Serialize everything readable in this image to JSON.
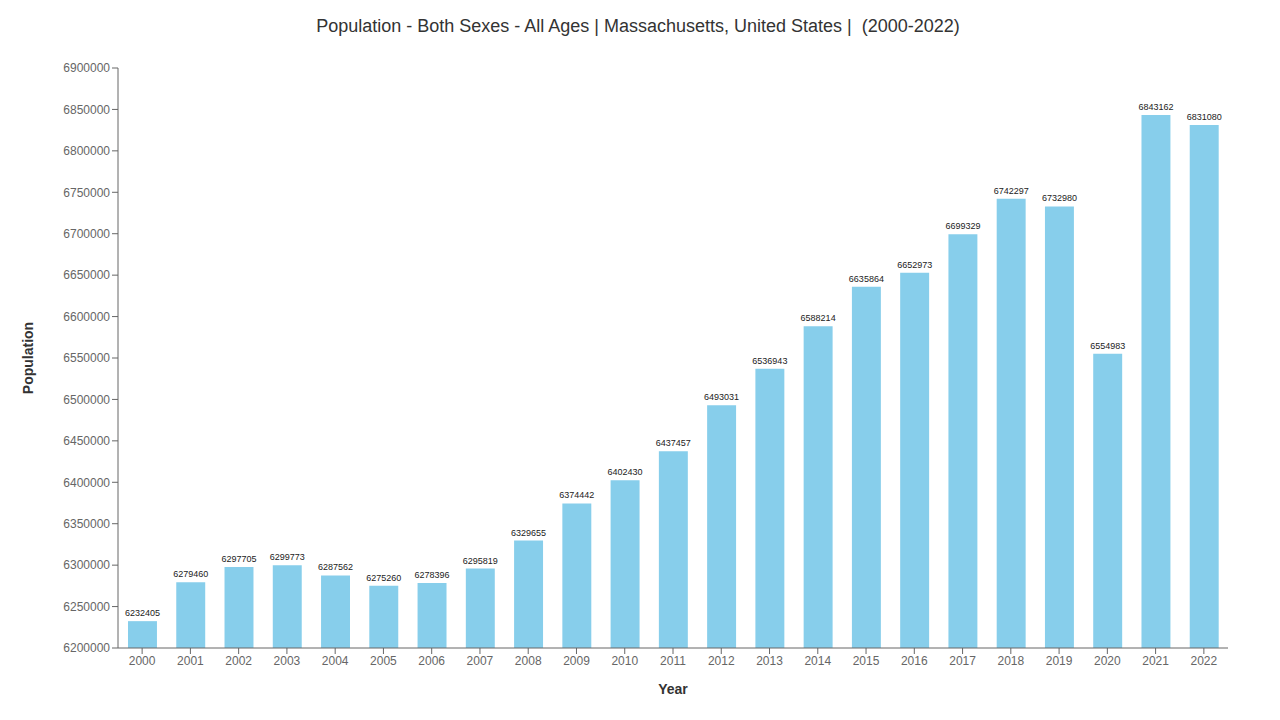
{
  "chart_data": {
    "type": "bar",
    "title": "Population - Both Sexes - All Ages | Massachusetts, United States |  (2000-2022)",
    "xlabel": "Year",
    "ylabel": "Population",
    "x": [
      2000,
      2001,
      2002,
      2003,
      2004,
      2005,
      2006,
      2007,
      2008,
      2009,
      2010,
      2011,
      2012,
      2013,
      2014,
      2015,
      2016,
      2017,
      2018,
      2019,
      2020,
      2021,
      2022
    ],
    "values": [
      6232405,
      6279460,
      6297705,
      6299773,
      6287562,
      6275260,
      6278396,
      6295819,
      6329655,
      6374442,
      6402430,
      6437457,
      6493031,
      6536943,
      6588214,
      6635864,
      6652973,
      6699329,
      6742297,
      6732980,
      6554983,
      6843162,
      6831080
    ],
    "color": "#87CEEB",
    "xlim": [
      1999.5,
      2022.5
    ],
    "xticks": [
      2000,
      2001,
      2002,
      2003,
      2004,
      2005,
      2006,
      2007,
      2008,
      2009,
      2010,
      2011,
      2012,
      2013,
      2014,
      2015,
      2016,
      2017,
      2018,
      2019,
      2020,
      2021,
      2022
    ],
    "ylim": [
      6200000,
      6900000
    ],
    "yticks": [
      6200000,
      6250000,
      6300000,
      6350000,
      6400000,
      6450000,
      6500000,
      6550000,
      6600000,
      6650000,
      6700000,
      6750000,
      6800000,
      6850000,
      6900000
    ],
    "grid": false,
    "data_labels": true
  }
}
